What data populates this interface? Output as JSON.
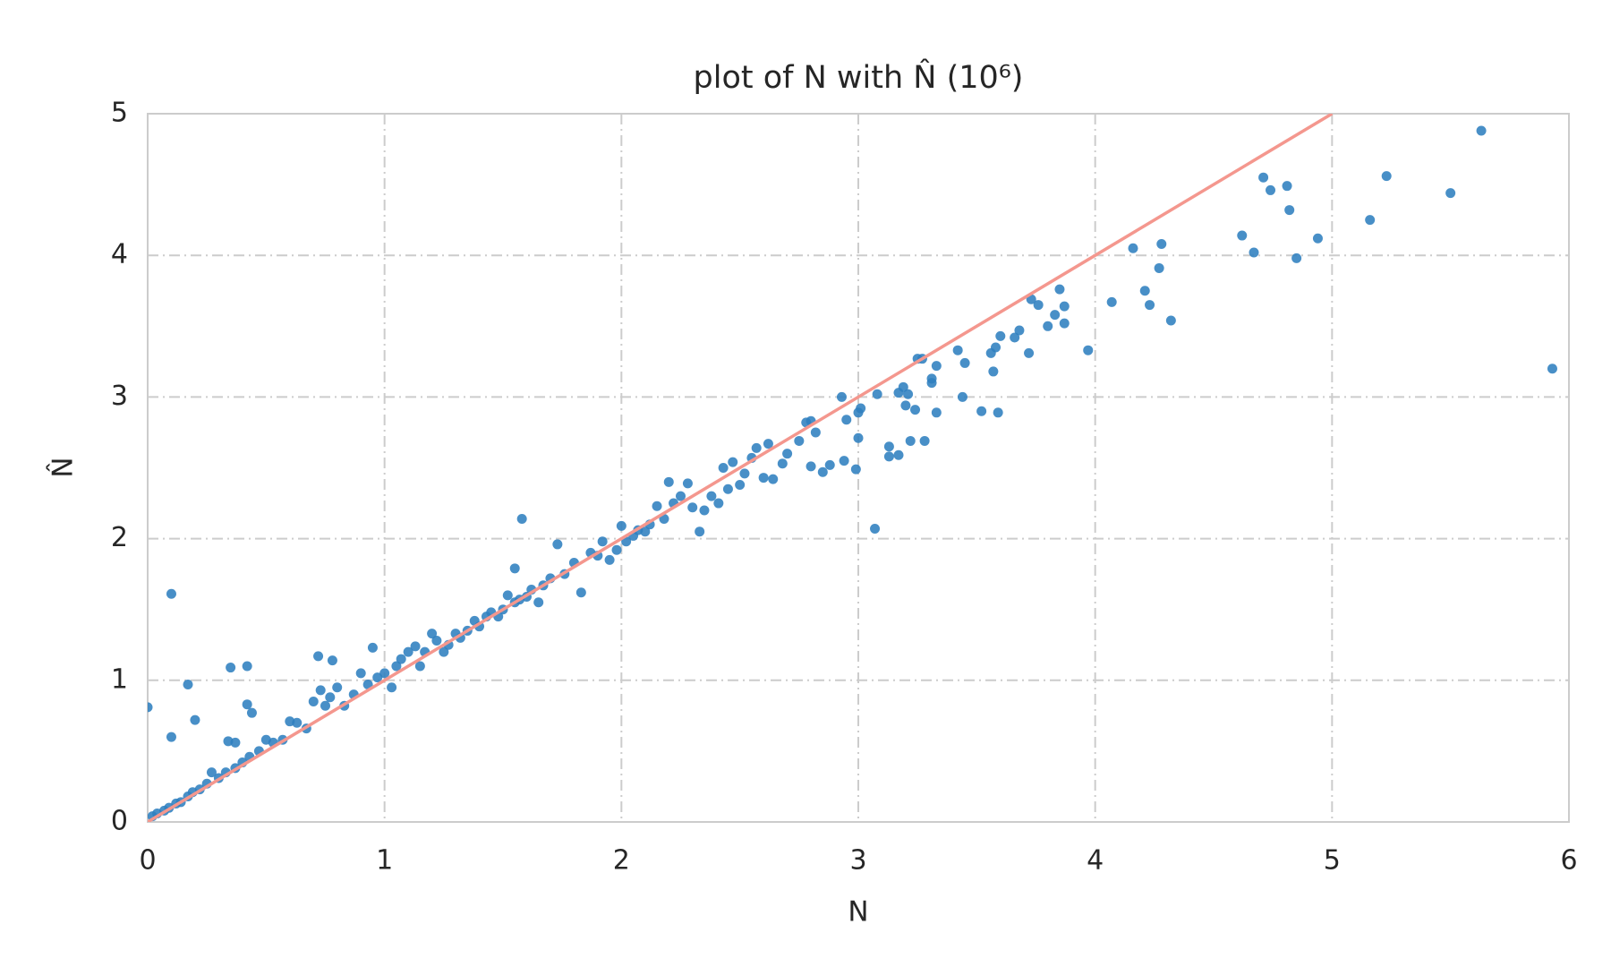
{
  "chart_data": {
    "type": "scatter",
    "title": "plot of N with N̂ (10⁶)",
    "x_label": "N",
    "y_label": "N̂",
    "xlim": [
      0,
      6
    ],
    "ylim": [
      0,
      5
    ],
    "xticks": [
      0,
      1,
      2,
      3,
      4,
      5,
      6
    ],
    "yticks": [
      0,
      1,
      2,
      3,
      4,
      5
    ],
    "grid": true,
    "color": "#2f7fbf",
    "x": [
      0.0,
      0.1,
      0.1,
      0.17,
      0.2,
      0.35,
      0.42,
      0.42,
      0.44,
      0.34,
      0.37,
      0.72,
      0.78,
      0.95,
      1.58,
      1.55,
      3.07,
      5.93,
      5.63,
      5.23,
      5.5,
      5.16,
      4.94,
      4.85,
      4.81,
      4.82,
      4.74,
      4.71,
      4.67,
      4.62,
      4.32,
      4.28,
      4.27,
      4.23,
      4.21,
      4.16,
      4.07,
      3.97,
      3.87,
      3.87,
      3.85,
      3.83,
      3.8,
      3.76,
      3.73,
      3.72,
      3.68,
      3.66,
      3.6,
      3.58,
      3.57,
      3.56,
      3.59,
      3.52,
      3.44,
      3.45,
      3.42,
      3.33,
      3.31,
      3.31,
      3.33,
      3.27,
      3.25,
      3.28,
      3.22,
      3.24,
      3.2,
      3.21,
      3.19,
      3.17,
      3.17,
      3.13,
      3.13,
      3.08,
      3.0,
      3.01,
      2.99,
      3.0,
      2.95,
      2.94,
      2.93,
      2.88,
      2.85,
      2.8,
      2.8,
      2.82,
      2.78,
      2.75,
      2.7,
      2.68,
      2.64,
      2.6,
      2.62,
      2.57,
      2.55,
      2.52,
      2.5,
      2.47,
      2.45,
      2.43,
      2.41,
      2.38,
      2.35,
      2.33,
      2.3,
      2.28,
      2.25,
      2.22,
      2.2,
      2.18,
      2.15,
      2.12,
      2.1,
      2.07,
      2.05,
      2.02,
      2.0,
      1.98,
      1.95,
      1.92,
      1.9,
      1.87,
      1.83,
      1.8,
      1.76,
      1.73,
      1.7,
      1.67,
      1.65,
      1.62,
      1.6,
      1.57,
      1.55,
      1.52,
      1.5,
      1.48,
      1.45,
      1.43,
      1.4,
      1.38,
      1.35,
      1.32,
      1.3,
      1.27,
      1.25,
      1.22,
      1.2,
      1.17,
      1.15,
      1.13,
      1.1,
      1.07,
      1.05,
      1.03,
      1.0,
      0.97,
      0.93,
      0.9,
      0.87,
      0.83,
      0.8,
      0.77,
      0.75,
      0.73,
      0.7,
      0.67,
      0.63,
      0.6,
      0.57,
      0.53,
      0.5,
      0.47,
      0.43,
      0.4,
      0.37,
      0.33,
      0.3,
      0.27,
      0.25,
      0.22,
      0.19,
      0.17,
      0.14,
      0.12,
      0.09,
      0.07,
      0.04,
      0.02
    ],
    "y": [
      0.81,
      1.61,
      0.6,
      0.97,
      0.72,
      1.09,
      1.1,
      0.83,
      0.77,
      0.57,
      0.56,
      1.17,
      1.14,
      1.23,
      2.14,
      1.79,
      2.07,
      3.2,
      4.88,
      4.56,
      4.44,
      4.25,
      4.12,
      3.98,
      4.49,
      4.32,
      4.46,
      4.55,
      4.02,
      4.14,
      3.54,
      4.08,
      3.91,
      3.65,
      3.75,
      4.05,
      3.67,
      3.33,
      3.64,
      3.52,
      3.76,
      3.58,
      3.5,
      3.65,
      3.69,
      3.31,
      3.47,
      3.42,
      3.43,
      3.35,
      3.18,
      3.31,
      2.89,
      2.9,
      3.0,
      3.24,
      3.33,
      3.22,
      3.1,
      3.13,
      2.89,
      3.27,
      3.27,
      2.69,
      2.69,
      2.91,
      2.94,
      3.02,
      3.07,
      3.03,
      2.59,
      2.58,
      2.65,
      3.02,
      2.89,
      2.92,
      2.49,
      2.71,
      2.84,
      2.55,
      3.0,
      2.52,
      2.47,
      2.51,
      2.83,
      2.75,
      2.82,
      2.69,
      2.6,
      2.53,
      2.42,
      2.43,
      2.67,
      2.64,
      2.57,
      2.46,
      2.38,
      2.54,
      2.35,
      2.5,
      2.25,
      2.3,
      2.2,
      2.05,
      2.22,
      2.39,
      2.3,
      2.25,
      2.4,
      2.14,
      2.23,
      2.1,
      2.05,
      2.06,
      2.02,
      1.98,
      2.09,
      1.92,
      1.85,
      1.98,
      1.88,
      1.9,
      1.62,
      1.83,
      1.75,
      1.96,
      1.72,
      1.67,
      1.55,
      1.64,
      1.59,
      1.57,
      1.55,
      1.6,
      1.5,
      1.45,
      1.48,
      1.45,
      1.38,
      1.42,
      1.35,
      1.3,
      1.33,
      1.25,
      1.2,
      1.28,
      1.33,
      1.2,
      1.1,
      1.24,
      1.2,
      1.15,
      1.1,
      0.95,
      1.05,
      1.02,
      0.97,
      1.05,
      0.9,
      0.82,
      0.95,
      0.88,
      0.82,
      0.93,
      0.85,
      0.66,
      0.7,
      0.71,
      0.58,
      0.56,
      0.58,
      0.5,
      0.46,
      0.42,
      0.38,
      0.35,
      0.31,
      0.35,
      0.27,
      0.23,
      0.21,
      0.18,
      0.14,
      0.13,
      0.1,
      0.08,
      0.06,
      0.04
    ],
    "line": {
      "x": [
        0,
        5
      ],
      "y": [
        0,
        5
      ],
      "color": "#f4978e"
    }
  }
}
